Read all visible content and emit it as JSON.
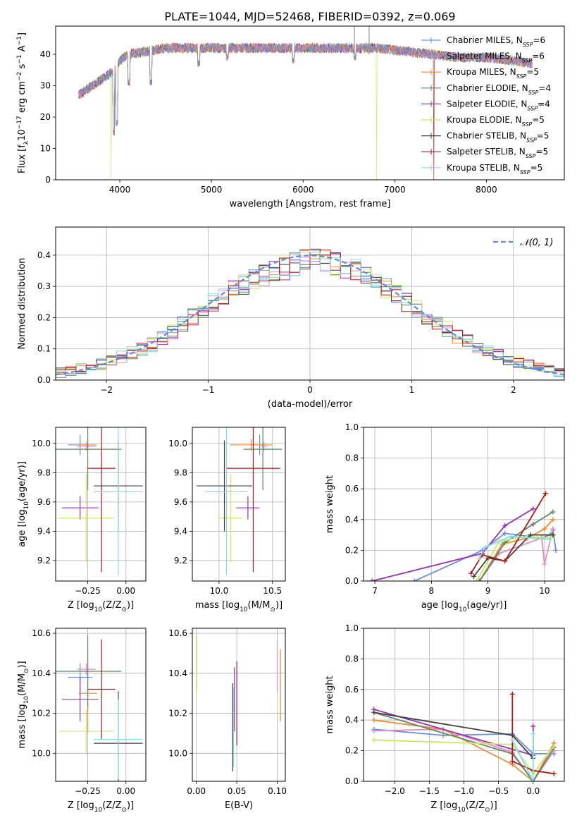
{
  "title": "PLATE=1044, MJD=52468, FIBERID=0392, z=0.069",
  "colors": {
    "Chabrier MILES": "#6a8fd8",
    "Salpeter MILES": "#e58cc0",
    "Kroupa MILES": "#f08a30",
    "Chabrier ELODIE": "#5a8a60",
    "Salpeter ELODIE": "#9a30b8",
    "Kroupa ELODIE": "#c8e860",
    "Chabrier STELIB": "#404040",
    "Salpeter STELIB": "#b01818",
    "Kroupa STELIB": "#80e0e8"
  },
  "chart_data": [
    {
      "id": "spectrum",
      "type": "line",
      "xlabel": "wavelength [Angstrom, rest frame]",
      "ylabel": "Flux [f_λ10^-17 erg cm^-2 s^-1 A^-1]",
      "xlim": [
        3300,
        8850
      ],
      "ylim": [
        0,
        49
      ],
      "xticks": [
        4000,
        5000,
        6000,
        7000,
        8000
      ],
      "yticks": [
        0,
        10,
        20,
        30,
        40
      ],
      "grid": false,
      "legend_position": "top-right",
      "legend": [
        {
          "model": "Chabrier MILES",
          "nssp": "6"
        },
        {
          "model": "Salpeter MILES",
          "nssp": "6"
        },
        {
          "model": "Kroupa MILES",
          "nssp": "5"
        },
        {
          "model": "Chabrier ELODIE",
          "nssp": "4"
        },
        {
          "model": "Salpeter ELODIE",
          "nssp": "4"
        },
        {
          "model": "Kroupa ELODIE",
          "nssp": "5"
        },
        {
          "model": "Chabrier STELIB",
          "nssp": "5"
        },
        {
          "model": "Salpeter STELIB",
          "nssp": "5"
        },
        {
          "model": "Kroupa STELIB",
          "nssp": "5"
        }
      ],
      "continuum": {
        "x": [
          3550,
          3650,
          3750,
          3850,
          3950,
          4000,
          4100,
          4300,
          4500,
          4700,
          5000,
          5300,
          5600,
          5900,
          6200,
          6500,
          6800,
          7100,
          7400,
          7700,
          8000,
          8300,
          8500
        ],
        "y": [
          27,
          29,
          31,
          33,
          35,
          38,
          40,
          41,
          42,
          42,
          42,
          42,
          42,
          42,
          42,
          42,
          42,
          41,
          40,
          39,
          39,
          38,
          37
        ]
      },
      "features": [
        {
          "x": 3934,
          "y": 14
        },
        {
          "x": 3969,
          "y": 17
        },
        {
          "x": 4101,
          "y": 30
        },
        {
          "x": 4340,
          "y": 30
        },
        {
          "x": 4861,
          "y": 36
        },
        {
          "x": 5175,
          "y": 38
        },
        {
          "x": 5893,
          "y": 37
        },
        {
          "x": 6563,
          "y": 38
        }
      ],
      "spikes_down": [
        {
          "x": 3905,
          "y": 0,
          "model": "Kroupa ELODIE"
        },
        {
          "x": 6800,
          "y": 0,
          "model": "Kroupa ELODIE"
        },
        {
          "x": 7425,
          "y": 0,
          "model": "Salpeter STELIB"
        }
      ],
      "spikes_up": [
        {
          "x": 6560,
          "y": 49
        },
        {
          "x": 6720,
          "y": 49
        }
      ]
    },
    {
      "id": "residuals",
      "type": "histogram",
      "xlabel": "(data-model)/error",
      "ylabel": "Normed distribution",
      "xlim": [
        -2.5,
        2.5
      ],
      "ylim": [
        0,
        0.49
      ],
      "xticks": [
        -2,
        -1,
        0,
        1,
        2
      ],
      "yticks": [
        0.0,
        0.1,
        0.2,
        0.3,
        0.4
      ],
      "grid": true,
      "legend_position": "top-right",
      "reference": {
        "label": "𝒩(0, 1)",
        "mean": 0,
        "sigma": 1
      },
      "bin_width": 0.1,
      "profile": {
        "x": [
          -2.5,
          -2.0,
          -1.5,
          -1.0,
          -0.5,
          0.0,
          0.5,
          1.0,
          1.5,
          2.0,
          2.5
        ],
        "y": [
          0.02,
          0.055,
          0.12,
          0.24,
          0.33,
          0.39,
          0.35,
          0.24,
          0.13,
          0.06,
          0.02
        ]
      }
    },
    {
      "id": "age-vs-Z",
      "type": "errorbar",
      "xlabel": "Z [log10(Z/Z⊙)]",
      "ylabel": "age  [log10(age/yr)]",
      "xlim": [
        -0.46,
        0.13
      ],
      "ylim": [
        9.06,
        10.11
      ],
      "xticks": [
        -0.25,
        0.0
      ],
      "yticks": [
        9.2,
        9.4,
        9.6,
        9.8,
        10.0
      ],
      "grid": true,
      "points": [
        {
          "model": "Chabrier MILES",
          "x": -0.3,
          "xerr": 0.08,
          "y": 9.99,
          "yerr": 0.07
        },
        {
          "model": "Salpeter MILES",
          "x": -0.26,
          "xerr": 0.06,
          "y": 9.98,
          "yerr": 0.03
        },
        {
          "model": "Kroupa MILES",
          "x": -0.25,
          "xerr": 0.06,
          "y": 9.99,
          "yerr": 0.04
        },
        {
          "model": "Chabrier ELODIE",
          "x": -0.25,
          "xerr": 0.22,
          "y": 9.96,
          "yerr": 0.28
        },
        {
          "model": "Salpeter ELODIE",
          "x": -0.3,
          "xerr": 0.12,
          "y": 9.56,
          "yerr": 0.08
        },
        {
          "model": "Kroupa ELODIE",
          "x": -0.26,
          "xerr": 0.18,
          "y": 9.49,
          "yerr": 0.3
        },
        {
          "model": "Chabrier STELIB",
          "x": -0.05,
          "xerr": 0.16,
          "y": 9.71,
          "yerr": 0.31
        },
        {
          "model": "Salpeter STELIB",
          "x": -0.16,
          "xerr": 0.09,
          "y": 9.83,
          "yerr": 0.71
        },
        {
          "model": "Kroupa STELIB",
          "x": -0.05,
          "xerr": 0.16,
          "y": 9.67,
          "yerr": 0.57
        }
      ]
    },
    {
      "id": "age-vs-mass",
      "type": "errorbar",
      "xlabel": "mass [log10(M/M⊙)]",
      "ylabel": "",
      "xlim": [
        9.75,
        10.62
      ],
      "ylim": [
        9.06,
        10.11
      ],
      "xticks": [
        10.0,
        10.5
      ],
      "yticks": [
        9.2,
        9.4,
        9.6,
        9.8,
        10.0
      ],
      "grid": true,
      "points": [
        {
          "model": "Chabrier MILES",
          "x": 10.38,
          "xerr": 0.07,
          "y": 9.99,
          "yerr": 0.07
        },
        {
          "model": "Salpeter MILES",
          "x": 10.42,
          "xerr": 0.03,
          "y": 9.98,
          "yerr": 0.03
        },
        {
          "model": "Kroupa MILES",
          "x": 10.3,
          "xerr": 0.2,
          "y": 9.99,
          "yerr": 0.04
        },
        {
          "model": "Chabrier ELODIE",
          "x": 10.41,
          "xerr": 0.18,
          "y": 9.96,
          "yerr": 0.28
        },
        {
          "model": "Salpeter ELODIE",
          "x": 10.27,
          "xerr": 0.11,
          "y": 9.56,
          "yerr": 0.08
        },
        {
          "model": "Kroupa ELODIE",
          "x": 10.11,
          "xerr": 0.11,
          "y": 9.49,
          "yerr": 0.3
        },
        {
          "model": "Chabrier STELIB",
          "x": 10.05,
          "xerr": 0.26,
          "y": 9.71,
          "yerr": 0.31
        },
        {
          "model": "Salpeter STELIB",
          "x": 10.32,
          "xerr": 0.25,
          "y": 9.83,
          "yerr": 0.71
        },
        {
          "model": "Kroupa STELIB",
          "x": 10.07,
          "xerr": 0.2,
          "y": 9.67,
          "yerr": 0.57
        }
      ]
    },
    {
      "id": "mass-weight-vs-age",
      "type": "line",
      "xlabel": "age  [log10(age/yr)]",
      "ylabel": "mass weight",
      "xlim": [
        6.8,
        10.35
      ],
      "ylim": [
        0,
        1.0
      ],
      "xticks": [
        7,
        8,
        9,
        10
      ],
      "yticks": [
        0.0,
        0.2,
        0.4,
        0.6,
        0.8,
        1.0
      ],
      "grid": true,
      "series": [
        {
          "model": "Chabrier MILES",
          "x": [
            7.7,
            8.9,
            9.3,
            9.95,
            10.1,
            10.15,
            10.2
          ],
          "y": [
            0.0,
            0.2,
            0.31,
            0.28,
            0.3,
            0.33,
            0.2
          ]
        },
        {
          "model": "Salpeter MILES",
          "x": [
            8.85,
            9.2,
            9.95,
            10.0,
            10.15
          ],
          "y": [
            0.0,
            0.18,
            0.28,
            0.11,
            0.34
          ]
        },
        {
          "model": "Kroupa MILES",
          "x": [
            8.85,
            9.25,
            9.7,
            10.0,
            10.15
          ],
          "y": [
            0.0,
            0.24,
            0.28,
            0.34,
            0.4
          ]
        },
        {
          "model": "Chabrier ELODIE",
          "x": [
            8.85,
            9.3,
            9.8,
            10.15
          ],
          "y": [
            0.0,
            0.25,
            0.37,
            0.45
          ]
        },
        {
          "model": "Salpeter ELODIE",
          "x": [
            6.95,
            8.9,
            9.3,
            9.8
          ],
          "y": [
            0.0,
            0.18,
            0.36,
            0.47
          ]
        },
        {
          "model": "Kroupa ELODIE",
          "x": [
            8.8,
            9.2,
            9.7,
            10.1,
            10.15
          ],
          "y": [
            0.0,
            0.26,
            0.29,
            0.28,
            0.3
          ]
        },
        {
          "model": "Chabrier STELIB",
          "x": [
            8.75,
            9.0,
            9.3,
            9.75,
            10.15
          ],
          "y": [
            0.03,
            0.15,
            0.13,
            0.3,
            0.3
          ]
        },
        {
          "model": "Salpeter STELIB",
          "x": [
            8.7,
            8.9,
            9.3,
            10.02
          ],
          "y": [
            0.05,
            0.17,
            0.13,
            0.57
          ]
        },
        {
          "model": "Kroupa STELIB",
          "x": [
            8.85,
            8.95,
            9.4,
            10.1
          ],
          "y": [
            0.15,
            0.22,
            0.29,
            0.27
          ]
        }
      ]
    },
    {
      "id": "mass-vs-Z",
      "type": "errorbar",
      "xlabel": "Z [log10(Z/Z⊙)]",
      "ylabel": "mass [log10(M/M⊙)]",
      "xlim": [
        -0.46,
        0.13
      ],
      "ylim": [
        9.86,
        10.625
      ],
      "xticks": [
        -0.25,
        0.0
      ],
      "yticks": [
        10.0,
        10.2,
        10.4,
        10.6
      ],
      "grid": true,
      "points": [
        {
          "model": "Chabrier MILES",
          "x": -0.3,
          "xerr": 0.08,
          "y": 10.38,
          "yerr": 0.07
        },
        {
          "model": "Salpeter MILES",
          "x": -0.26,
          "xerr": 0.06,
          "y": 10.42,
          "yerr": 0.03
        },
        {
          "model": "Kroupa MILES",
          "x": -0.25,
          "xerr": 0.06,
          "y": 10.3,
          "yerr": 0.2
        },
        {
          "model": "Chabrier ELODIE",
          "x": -0.25,
          "xerr": 0.22,
          "y": 10.41,
          "yerr": 0.18
        },
        {
          "model": "Salpeter ELODIE",
          "x": -0.3,
          "xerr": 0.12,
          "y": 10.27,
          "yerr": 0.11
        },
        {
          "model": "Kroupa ELODIE",
          "x": -0.26,
          "xerr": 0.18,
          "y": 10.11,
          "yerr": 0.11
        },
        {
          "model": "Chabrier STELIB",
          "x": -0.05,
          "xerr": 0.16,
          "y": 10.05,
          "yerr": 0.26
        },
        {
          "model": "Salpeter STELIB",
          "x": -0.16,
          "xerr": 0.09,
          "y": 10.32,
          "yerr": 0.25
        },
        {
          "model": "Kroupa STELIB",
          "x": -0.05,
          "xerr": 0.16,
          "y": 10.07,
          "yerr": 0.2
        }
      ]
    },
    {
      "id": "mass-vs-ebv",
      "type": "errorbar",
      "xlabel": "E(B-V)",
      "ylabel": "",
      "xlim": [
        -0.005,
        0.11
      ],
      "ylim": [
        9.86,
        10.625
      ],
      "xticks": [
        0.0,
        0.05,
        0.1
      ],
      "yticks": [
        10.0,
        10.2,
        10.4,
        10.6
      ],
      "grid": true,
      "points": [
        {
          "model": "Chabrier MILES",
          "x": 0.045,
          "y": 10.13,
          "yerr": 0.22
        },
        {
          "model": "Salpeter MILES",
          "x": 0.1,
          "y": 10.44,
          "yerr": 0.13
        },
        {
          "model": "Kroupa MILES",
          "x": 0.104,
          "y": 10.34,
          "yerr": 0.18
        },
        {
          "model": "Chabrier ELODIE",
          "x": 0.0,
          "y": 10.45,
          "yerr": 0.14
        },
        {
          "model": "Salpeter ELODIE",
          "x": 0.047,
          "y": 10.27,
          "yerr": 0.16
        },
        {
          "model": "Kroupa ELODIE",
          "x": 0.0,
          "y": 10.45,
          "yerr": 0.14
        },
        {
          "model": "Chabrier STELIB",
          "x": 0.045,
          "y": 10.13,
          "yerr": 0.22
        },
        {
          "model": "Salpeter STELIB",
          "x": 0.05,
          "y": 10.25,
          "yerr": 0.21
        },
        {
          "model": "Kroupa STELIB",
          "x": 0.046,
          "y": 10.13,
          "yerr": 0.2
        }
      ]
    },
    {
      "id": "mass-weight-vs-Z",
      "type": "line",
      "xlabel": "Z [log10(Z/Z⊙)]",
      "ylabel": "mass weight",
      "xlim": [
        -2.45,
        0.45
      ],
      "ylim": [
        0,
        1.0
      ],
      "xticks": [
        -2.0,
        -1.5,
        -1.0,
        -0.5,
        0.0
      ],
      "yticks": [
        0.0,
        0.2,
        0.4,
        0.6,
        0.8,
        1.0
      ],
      "grid": true,
      "series": [
        {
          "model": "Chabrier MILES",
          "x": [
            -2.3,
            -1.3,
            -0.3,
            0.0,
            0.3
          ],
          "y": [
            0.34,
            0.3,
            0.31,
            0.18,
            0.18
          ]
        },
        {
          "model": "Salpeter MILES",
          "x": [
            -2.3,
            -1.3,
            -0.3,
            0.0,
            0.3
          ],
          "y": [
            0.33,
            0.34,
            0.19,
            0.0,
            0.2
          ]
        },
        {
          "model": "Kroupa MILES",
          "x": [
            -2.3,
            -1.3,
            -0.3,
            0.0,
            0.3
          ],
          "y": [
            0.4,
            0.34,
            0.11,
            0.0,
            0.25
          ]
        },
        {
          "model": "Chabrier ELODIE",
          "x": [
            -2.3,
            -0.3,
            0.0,
            0.3
          ],
          "y": [
            0.45,
            0.18,
            0.0,
            0.22
          ]
        },
        {
          "model": "Salpeter ELODIE",
          "x": [
            -2.3,
            0.0,
            0.0
          ],
          "y": [
            0.47,
            0.17,
            0.36
          ]
        },
        {
          "model": "Kroupa ELODIE",
          "x": [
            -2.3,
            -0.3,
            0.0,
            0.3
          ],
          "y": [
            0.27,
            0.24,
            0.05,
            0.23
          ]
        },
        {
          "model": "Chabrier STELIB",
          "x": [
            -2.3,
            -0.3,
            0.0
          ],
          "y": [
            0.45,
            0.3,
            0.15
          ]
        },
        {
          "model": "Salpeter STELIB",
          "x": [
            -0.3,
            -0.3,
            0.0,
            0.3
          ],
          "y": [
            0.57,
            0.13,
            0.07,
            0.05
          ]
        },
        {
          "model": "Kroupa STELIB",
          "x": [
            -0.3,
            0.0,
            0.0
          ],
          "y": [
            0.27,
            0.0,
            0.31
          ]
        }
      ]
    }
  ]
}
